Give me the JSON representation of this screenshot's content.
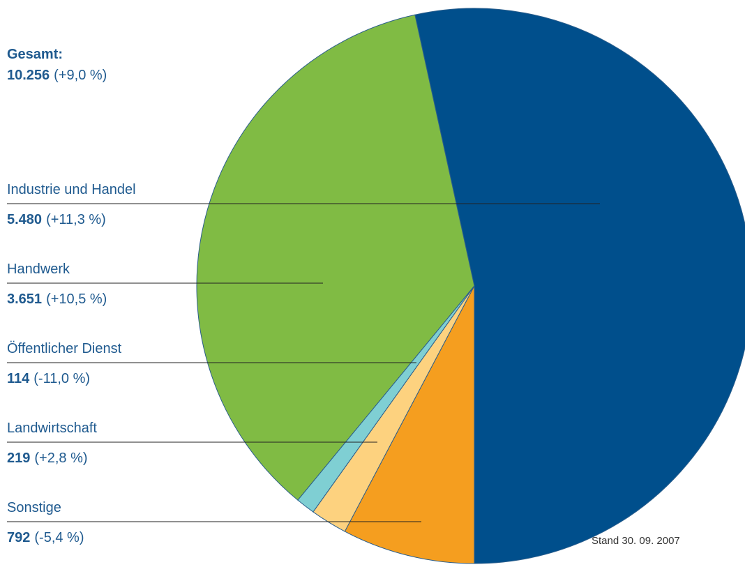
{
  "chart_data": {
    "type": "pie",
    "total": {
      "title": "Gesamt:",
      "value_label": "10.256",
      "change": "(+9,0 %)"
    },
    "categories": [
      "Industrie und Handel",
      "Handwerk",
      "Öffentlicher Dienst",
      "Landwirtschaft",
      "Sonstige"
    ],
    "values": [
      5480,
      3651,
      114,
      219,
      792
    ],
    "value_labels": [
      "5.480",
      "3.651",
      "114",
      "219",
      "792"
    ],
    "changes": [
      "(+11,3 %)",
      "(+10,5 %)",
      "(-11,0 %)",
      "(+2,8 %)",
      "(-5,4 %)"
    ],
    "colors": [
      "#004f8c",
      "#80bb44",
      "#7fcfd3",
      "#fdd27f",
      "#f59e1f"
    ],
    "note": "Stand 30. 09. 2007"
  }
}
